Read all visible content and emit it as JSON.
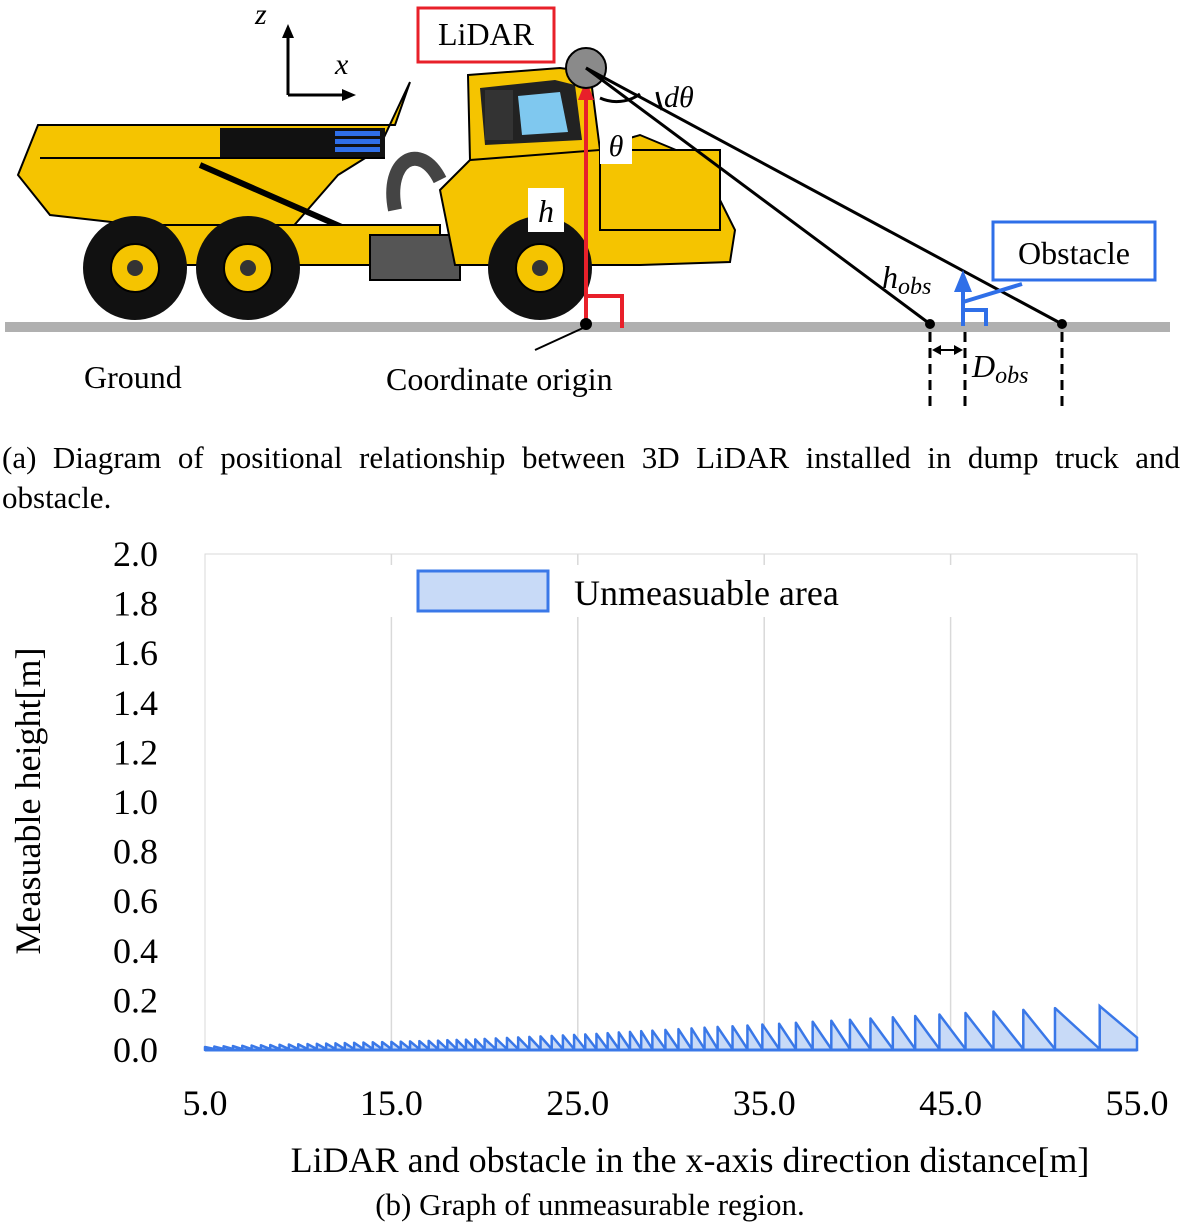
{
  "diagram": {
    "axis_z": "z",
    "axis_x": "x",
    "lidar_label": "LiDAR",
    "d_theta": "dθ",
    "theta": "θ",
    "h": "h",
    "obstacle_label": "Obstacle",
    "h_obs_main": "h",
    "h_obs_sub": "obs",
    "d_obs_main": "D",
    "d_obs_sub": "obs",
    "ground_label": "Ground",
    "origin_label": "Coordinate origin",
    "colors": {
      "lidar_box": "#e8202a",
      "obstacle": "#2f6fe8",
      "truck": "#f5c400",
      "ground": "#b0b0b0"
    }
  },
  "caption_a": "(a) Diagram of positional relationship between 3D LiDAR installed in dump truck and obstacle.",
  "caption_b": "(b) Graph of unmeasurable region.",
  "chart_data": {
    "type": "area",
    "title": "",
    "xlabel": "LiDAR and obstacle in the x-axis direction distance[m]",
    "ylabel": "Measuable height[m]",
    "xlim": [
      5.0,
      55.0
    ],
    "ylim": [
      0.0,
      2.0
    ],
    "x_ticks": [
      "5.0",
      "15.0",
      "25.0",
      "35.0",
      "45.0",
      "55.0"
    ],
    "y_ticks": [
      "0.0",
      "0.2",
      "0.4",
      "0.6",
      "0.8",
      "1.0",
      "1.2",
      "1.4",
      "1.6",
      "1.8",
      "2.0"
    ],
    "grid": "vertical",
    "legend": {
      "position": "top-center",
      "entries": [
        "Unmeasuable area"
      ]
    },
    "series_color": "#3a78e8",
    "series_fill": "#c8daf7",
    "series": [
      {
        "name": "Unmeasuable area",
        "peaks": [
          {
            "x": 5.5,
            "y": 0.014
          },
          {
            "x": 6.0,
            "y": 0.015
          },
          {
            "x": 6.5,
            "y": 0.016
          },
          {
            "x": 7.0,
            "y": 0.017
          },
          {
            "x": 7.5,
            "y": 0.018
          },
          {
            "x": 8.0,
            "y": 0.019
          },
          {
            "x": 8.5,
            "y": 0.02
          },
          {
            "x": 9.0,
            "y": 0.021
          },
          {
            "x": 9.5,
            "y": 0.022
          },
          {
            "x": 10.0,
            "y": 0.023
          },
          {
            "x": 10.5,
            "y": 0.024
          },
          {
            "x": 11.0,
            "y": 0.025
          },
          {
            "x": 11.5,
            "y": 0.026
          },
          {
            "x": 12.0,
            "y": 0.027
          },
          {
            "x": 12.5,
            "y": 0.028
          },
          {
            "x": 13.0,
            "y": 0.029
          },
          {
            "x": 13.5,
            "y": 0.03
          },
          {
            "x": 14.0,
            "y": 0.031
          },
          {
            "x": 14.5,
            "y": 0.032
          },
          {
            "x": 15.0,
            "y": 0.033
          },
          {
            "x": 15.5,
            "y": 0.034
          },
          {
            "x": 16.0,
            "y": 0.035
          },
          {
            "x": 16.5,
            "y": 0.036
          },
          {
            "x": 17.0,
            "y": 0.037
          },
          {
            "x": 17.5,
            "y": 0.038
          },
          {
            "x": 18.0,
            "y": 0.04
          },
          {
            "x": 18.5,
            "y": 0.041
          },
          {
            "x": 19.0,
            "y": 0.042
          },
          {
            "x": 19.5,
            "y": 0.043
          },
          {
            "x": 20.0,
            "y": 0.045
          },
          {
            "x": 20.6,
            "y": 0.047
          },
          {
            "x": 21.2,
            "y": 0.049
          },
          {
            "x": 21.8,
            "y": 0.051
          },
          {
            "x": 22.4,
            "y": 0.053
          },
          {
            "x": 23.0,
            "y": 0.055
          },
          {
            "x": 23.6,
            "y": 0.057
          },
          {
            "x": 24.2,
            "y": 0.059
          },
          {
            "x": 24.8,
            "y": 0.061
          },
          {
            "x": 25.4,
            "y": 0.063
          },
          {
            "x": 26.0,
            "y": 0.065
          },
          {
            "x": 26.6,
            "y": 0.068
          },
          {
            "x": 27.2,
            "y": 0.071
          },
          {
            "x": 27.8,
            "y": 0.073
          },
          {
            "x": 28.4,
            "y": 0.076
          },
          {
            "x": 29.0,
            "y": 0.078
          },
          {
            "x": 29.7,
            "y": 0.081
          },
          {
            "x": 30.4,
            "y": 0.084
          },
          {
            "x": 31.1,
            "y": 0.087
          },
          {
            "x": 31.8,
            "y": 0.09
          },
          {
            "x": 32.5,
            "y": 0.093
          },
          {
            "x": 33.3,
            "y": 0.096
          },
          {
            "x": 34.1,
            "y": 0.099
          },
          {
            "x": 34.9,
            "y": 0.103
          },
          {
            "x": 35.8,
            "y": 0.106
          },
          {
            "x": 36.7,
            "y": 0.11
          },
          {
            "x": 37.6,
            "y": 0.114
          },
          {
            "x": 38.6,
            "y": 0.118
          },
          {
            "x": 39.6,
            "y": 0.122
          },
          {
            "x": 40.7,
            "y": 0.127
          },
          {
            "x": 41.9,
            "y": 0.132
          },
          {
            "x": 43.1,
            "y": 0.137
          },
          {
            "x": 44.4,
            "y": 0.143
          },
          {
            "x": 45.8,
            "y": 0.149
          },
          {
            "x": 47.3,
            "y": 0.155
          },
          {
            "x": 48.9,
            "y": 0.162
          },
          {
            "x": 50.6,
            "y": 0.169
          },
          {
            "x": 53.0,
            "y": 0.177
          }
        ],
        "end": {
          "x": 55.0,
          "y": 0.05
        }
      }
    ]
  }
}
